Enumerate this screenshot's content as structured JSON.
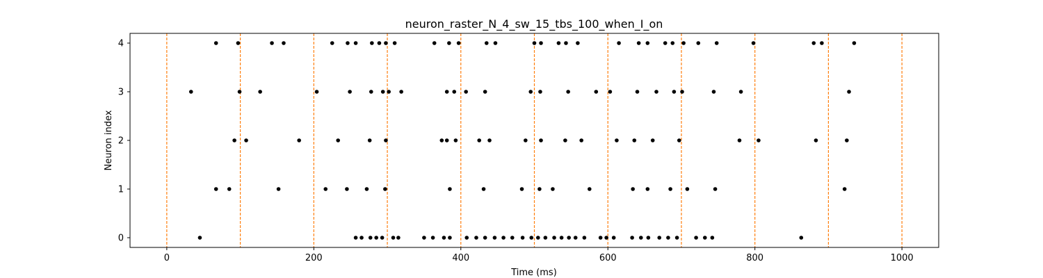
{
  "chart_data": {
    "type": "scatter",
    "title": "neuron_raster_N_4_sw_15_tbs_100_when_I_on",
    "xlabel": "Time (ms)",
    "ylabel": "Neuron index",
    "xlim": [
      -50,
      1050
    ],
    "ylim": [
      -0.2,
      4.2
    ],
    "xticks": [
      0,
      200,
      400,
      600,
      800,
      1000
    ],
    "yticks": [
      0,
      1,
      2,
      3,
      4
    ],
    "grid": false,
    "marker_color": "#000000",
    "vline_color": "#ff7f0e",
    "vlines": [
      0,
      100,
      200,
      300,
      400,
      500,
      600,
      700,
      800,
      900,
      1000
    ],
    "series": [
      {
        "neuron": 0,
        "x": [
          45,
          257,
          265,
          277,
          285,
          293,
          308,
          315,
          350,
          362,
          377,
          385,
          408,
          421,
          433,
          446,
          458,
          470,
          484,
          496,
          505,
          515,
          527,
          537,
          547,
          556,
          568,
          590,
          598,
          608,
          633,
          645,
          655,
          670,
          682,
          694,
          720,
          732,
          742,
          863
        ]
      },
      {
        "neuron": 1,
        "x": [
          67,
          85,
          152,
          216,
          245,
          272,
          297,
          385,
          431,
          483,
          507,
          525,
          575,
          634,
          654,
          685,
          708,
          746,
          922
        ]
      },
      {
        "neuron": 2,
        "x": [
          92,
          108,
          180,
          233,
          276,
          298,
          374,
          381,
          393,
          425,
          439,
          488,
          509,
          542,
          564,
          612,
          636,
          661,
          697,
          779,
          805,
          883,
          925
        ]
      },
      {
        "neuron": 3,
        "x": [
          33,
          99,
          127,
          204,
          249,
          278,
          294,
          302,
          319,
          381,
          391,
          407,
          433,
          495,
          508,
          546,
          584,
          603,
          640,
          666,
          690,
          701,
          744,
          781,
          928
        ]
      },
      {
        "neuron": 4,
        "x": [
          67,
          97,
          143,
          159,
          225,
          246,
          257,
          279,
          289,
          298,
          310,
          364,
          384,
          397,
          435,
          447,
          500,
          509,
          533,
          543,
          559,
          615,
          642,
          654,
          678,
          688,
          703,
          723,
          748,
          798,
          880,
          891,
          935
        ]
      }
    ]
  }
}
